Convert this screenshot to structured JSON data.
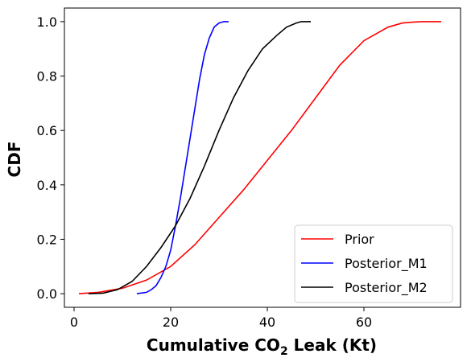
{
  "chart_data": {
    "type": "line",
    "xlabel": "Cumulative CO",
    "xlabel_subscript": "2",
    "xlabel_suffix": " Leak (Kt)",
    "ylabel": "CDF",
    "xlim": [
      -2,
      80
    ],
    "ylim": [
      -0.05,
      1.05
    ],
    "xticks": [
      0,
      20,
      40,
      60
    ],
    "yticks": [
      0.0,
      0.2,
      0.4,
      0.6,
      0.8,
      1.0
    ],
    "xtick_labels": [
      "0",
      "20",
      "40",
      "60"
    ],
    "ytick_labels": [
      "0.0",
      "0.2",
      "0.4",
      "0.6",
      "0.8",
      "1.0"
    ],
    "grid": false,
    "legend_position": "bottom-right",
    "series": [
      {
        "name": "Prior",
        "color": "#ff0000",
        "x": [
          1,
          5,
          10,
          15,
          20,
          25,
          30,
          35,
          40,
          45,
          50,
          55,
          60,
          65,
          68,
          70,
          72,
          74,
          76
        ],
        "y": [
          0.0,
          0.005,
          0.02,
          0.05,
          0.1,
          0.18,
          0.28,
          0.38,
          0.49,
          0.6,
          0.72,
          0.84,
          0.93,
          0.98,
          0.995,
          0.998,
          1.0,
          1.0,
          1.0
        ]
      },
      {
        "name": "Posterior_M1",
        "color": "#0000ff",
        "x": [
          13,
          15,
          16,
          17,
          18,
          19,
          20,
          21,
          22,
          23,
          24,
          25,
          26,
          27,
          28,
          29,
          30,
          31,
          32
        ],
        "y": [
          0.0,
          0.005,
          0.015,
          0.03,
          0.06,
          0.1,
          0.16,
          0.25,
          0.35,
          0.46,
          0.57,
          0.68,
          0.79,
          0.88,
          0.94,
          0.98,
          0.995,
          1.0,
          1.0
        ]
      },
      {
        "name": "Posterior_M2",
        "color": "#000000",
        "x": [
          3,
          6,
          9,
          12,
          15,
          18,
          21,
          24,
          27,
          30,
          33,
          36,
          39,
          42,
          44,
          46,
          47,
          48,
          49
        ],
        "y": [
          0.0,
          0.002,
          0.015,
          0.045,
          0.1,
          0.17,
          0.25,
          0.35,
          0.47,
          0.6,
          0.72,
          0.82,
          0.9,
          0.95,
          0.98,
          0.995,
          1.0,
          1.0,
          1.0
        ]
      }
    ]
  }
}
